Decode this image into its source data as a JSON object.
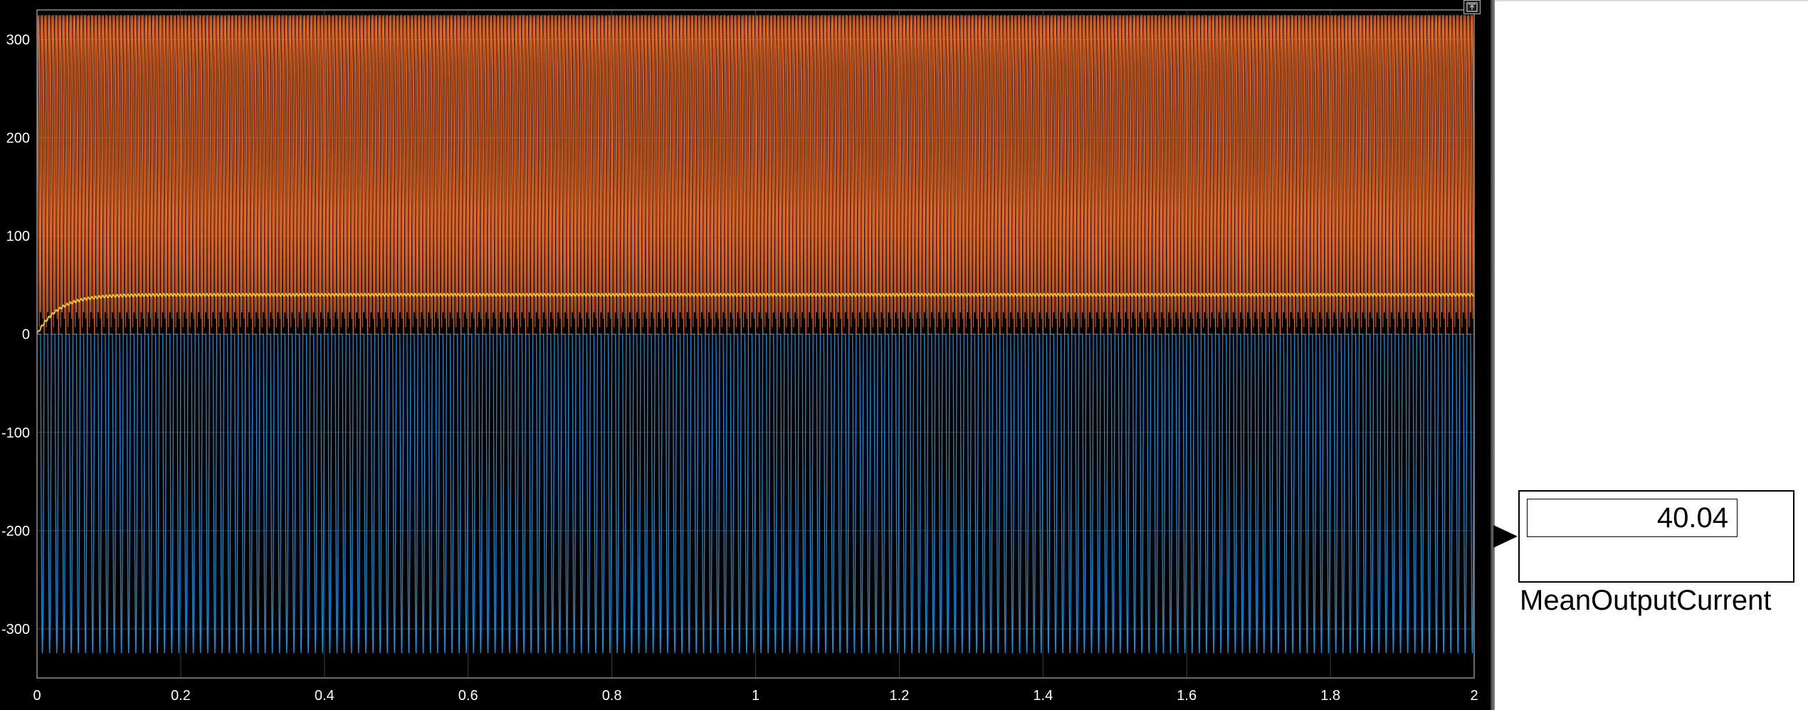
{
  "chart_data": {
    "type": "line",
    "title": "",
    "xlabel": "",
    "ylabel": "",
    "xlim": [
      0,
      2
    ],
    "ylim": [
      -350,
      330
    ],
    "xticks": [
      0,
      0.2,
      0.4,
      0.6,
      0.8,
      1,
      1.2,
      1.4,
      1.6,
      1.8,
      2
    ],
    "xtick_labels": [
      "0",
      "0.2",
      "0.4",
      "0.6",
      "0.8",
      "1",
      "1.2",
      "1.4",
      "1.6",
      "1.8",
      "2"
    ],
    "yticks": [
      -300,
      -200,
      -100,
      0,
      100,
      200,
      300
    ],
    "ytick_labels": [
      "-300",
      "-200",
      "-100",
      "0",
      "100",
      "200",
      "300"
    ],
    "grid": true,
    "series": [
      {
        "color": "#1e8ad6",
        "description": "negative sinusoidal pulses from 0 to about -325, ~200 cycles over 0–2",
        "amplitude": 325,
        "frequency": 100
      },
      {
        "color": "#e46a2a",
        "description": "rectified pulses from 0 to about 325, ~200 cycles over 0–2",
        "amplitude": 325,
        "frequency": 100
      },
      {
        "color": "#f2c22a",
        "description": "mean output current rising from 0 and settling near 40",
        "steady_value": 40.04,
        "time_constant": 0.03
      }
    ]
  },
  "colors": {
    "background": "#000000",
    "axes": "#8c8c8c",
    "grid": "#3e3e3e",
    "tick_text": "#ffffff"
  },
  "display_block": {
    "value": "40.04",
    "name": "MeanOutputCurrent"
  },
  "icons": {
    "dock": "undock-icon",
    "port": "input-port-arrow-icon"
  }
}
